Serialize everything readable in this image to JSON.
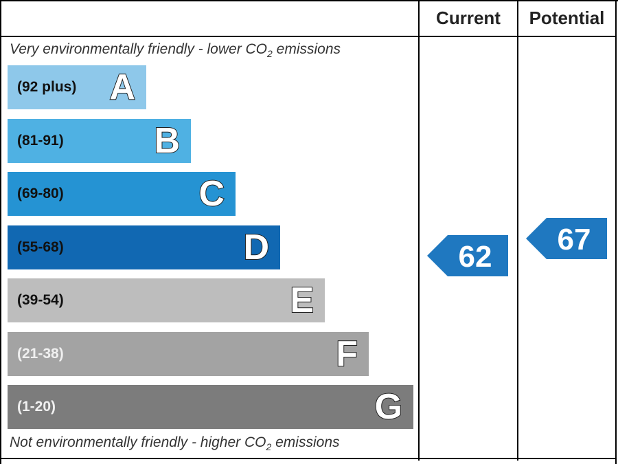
{
  "chart_data": {
    "type": "bar",
    "columns": [
      "Current",
      "Potential"
    ],
    "top_note": {
      "pre": "Very environmentally friendly - lower CO",
      "sub": "2",
      "post": " emissions"
    },
    "bottom_note": {
      "pre": "Not environmentally friendly - higher CO",
      "sub": "2",
      "post": " emissions"
    },
    "bands": [
      {
        "letter": "A",
        "range": "(92 plus)",
        "min": 92,
        "max": 100,
        "color": "#8ec8ea",
        "text_color": "#111111"
      },
      {
        "letter": "B",
        "range": "(81-91)",
        "min": 81,
        "max": 91,
        "color": "#4fb1e3",
        "text_color": "#111111"
      },
      {
        "letter": "C",
        "range": "(69-80)",
        "min": 69,
        "max": 80,
        "color": "#2593d3",
        "text_color": "#111111"
      },
      {
        "letter": "D",
        "range": "(55-68)",
        "min": 55,
        "max": 68,
        "color": "#1168b2",
        "text_color": "#111111"
      },
      {
        "letter": "E",
        "range": "(39-54)",
        "min": 39,
        "max": 54,
        "color": "#bdbdbd",
        "text_color": "#111111"
      },
      {
        "letter": "F",
        "range": "(21-38)",
        "min": 21,
        "max": 38,
        "color": "#a3a3a3",
        "text_color": "#f0f0f0"
      },
      {
        "letter": "G",
        "range": "(1-20)",
        "min": 1,
        "max": 20,
        "color": "#7c7c7c",
        "text_color": "#f0f0f0"
      }
    ],
    "current": {
      "value": 62,
      "band": "D",
      "color": "#1f78c0"
    },
    "potential": {
      "value": 67,
      "band": "D",
      "color": "#1f78c0"
    }
  }
}
